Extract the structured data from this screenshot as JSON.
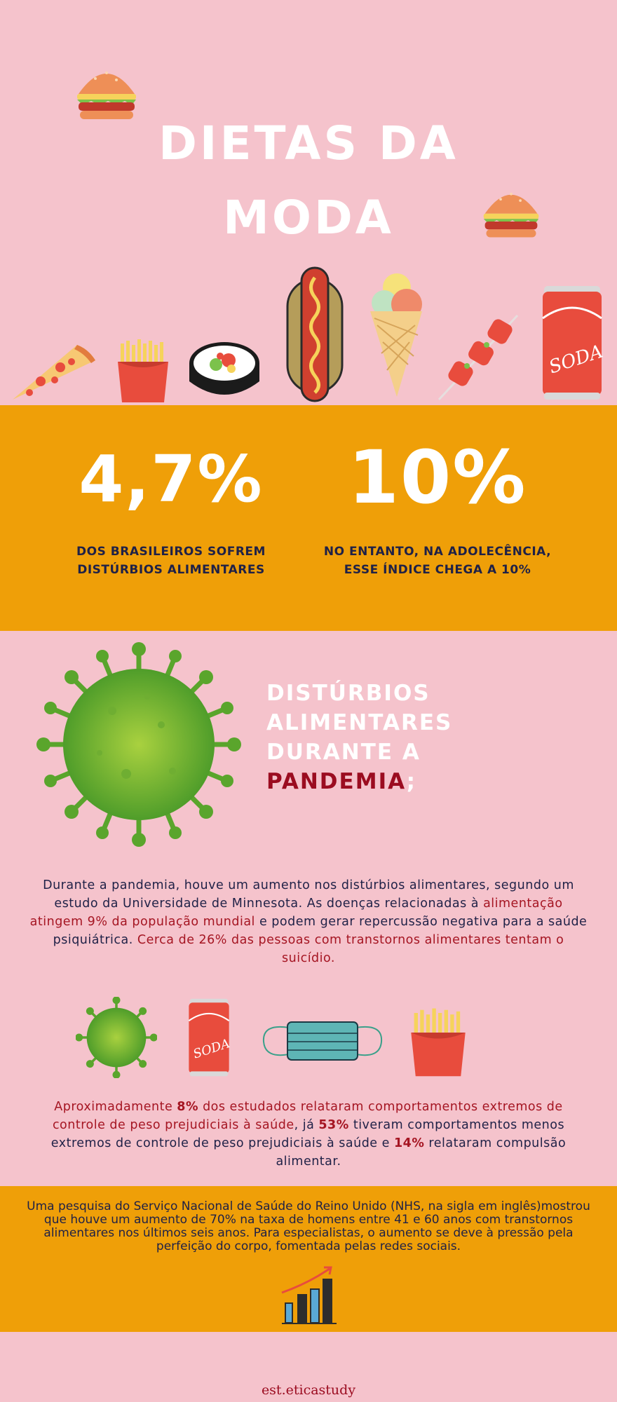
{
  "hero": {
    "title_line1": "DIETAS DA",
    "title_line2": "MODA",
    "icons": [
      "burger-icon",
      "burger-icon",
      "pizza-icon",
      "fries-icon",
      "sushi-icon",
      "hotdog-icon",
      "ice-cream-icon",
      "skewer-icon",
      "soda-can-icon"
    ],
    "soda_label": "SODA"
  },
  "stats": [
    {
      "value": "4,7%",
      "caption_line1": "DOS BRASILEIROS SOFREM",
      "caption_line2": "DISTÚRBIOS ALIMENTARES"
    },
    {
      "value": "10%",
      "caption_line1": "NO ENTANTO, NA ADOLECÊNCIA,",
      "caption_line2": "ESSE ÍNDICE CHEGA A 10%"
    }
  ],
  "pandemic": {
    "heading_line1": "DISTÚRBIOS",
    "heading_line2": "ALIMENTARES",
    "heading_line3": "DURANTE A",
    "heading_highlight": "PANDEMIA",
    "heading_punct": ";",
    "para1": {
      "a": "Durante a pandemia, houve um aumento nos distúrbios alimentares, segundo um estudo da Universidade de Minnesota. As doenças relacionadas à ",
      "b": "alimentação atingem 9% da população mundial",
      "c": " e podem gerar repercussão negativa para a saúde psiquiátrica. ",
      "d": "Cerca de 26% das pessoas com transtornos alimentares tentam o suicídio."
    },
    "icons": [
      "virus-icon",
      "soda-can-icon",
      "face-mask-icon",
      "fries-icon"
    ],
    "para2": {
      "a": "Aproximadamente ",
      "b": "8%",
      "c": " dos estudados relataram comportamentos extremos de controle de peso prejudiciais à saúde",
      "d": ", já ",
      "e": "53%",
      "f": " tiveram comportamentos menos extremos de controle de peso prejudiciais à saúde e ",
      "g": "14%",
      "h": " relataram compulsão alimentar."
    }
  },
  "nhs": {
    "text": "Uma pesquisa do Serviço Nacional de Saúde do Reino Unido (NHS, na sigla em inglês)mostrou que houve um aumento de 70% na taxa de homens entre 41 e 60 anos com transtornos alimentares nos últimos seis anos. Para especialistas, o aumento se deve à pressão pela perfeição do corpo, fomentada pelas redes sociais.",
    "icon": "growth-chart-icon"
  },
  "footer": {
    "credit": "est.eticastudy"
  },
  "colors": {
    "pink": "#f5c3cc",
    "orange": "#ef9f08",
    "navy": "#1f2147",
    "dark_red": "#9b0c20",
    "white": "#ffffff"
  }
}
